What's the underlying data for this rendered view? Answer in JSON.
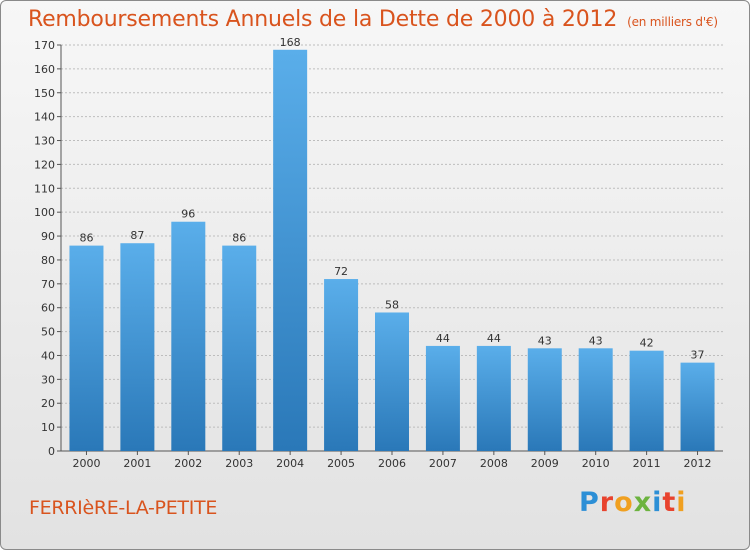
{
  "header": {
    "title": "Remboursements Annuels de la Dette de 2000 à 2012",
    "unit": "(en milliers d'€)"
  },
  "footer": {
    "city": "FERRIèRE-LA-PETITE",
    "logo": "Proxiti",
    "logo_letters": [
      {
        "ch": "P",
        "color": "#2c8fd6"
      },
      {
        "ch": "r",
        "color": "#e8432e"
      },
      {
        "ch": "o",
        "color": "#f0a020"
      },
      {
        "ch": "x",
        "color": "#6cb33f"
      },
      {
        "ch": "i",
        "color": "#2c8fd6"
      },
      {
        "ch": "t",
        "color": "#e8432e"
      },
      {
        "ch": "i",
        "color": "#f0a020"
      }
    ]
  },
  "colors": {
    "accent": "#d9541e",
    "bar_top": "#5aaeea",
    "bar_bottom": "#2a78b8",
    "grid": "#bdbdbd",
    "axis_text": "#333333"
  },
  "chart_data": {
    "type": "bar",
    "categories": [
      "2000",
      "2001",
      "2002",
      "2003",
      "2004",
      "2005",
      "2006",
      "2007",
      "2008",
      "2009",
      "2010",
      "2011",
      "2012"
    ],
    "values": [
      86,
      87,
      96,
      86,
      168,
      72,
      58,
      44,
      44,
      43,
      43,
      42,
      37
    ],
    "ylim": [
      0,
      170
    ],
    "yticks": [
      0,
      10,
      20,
      30,
      40,
      50,
      60,
      70,
      80,
      90,
      100,
      110,
      120,
      130,
      140,
      150,
      160,
      170
    ],
    "grid": true,
    "data_labels": true
  }
}
